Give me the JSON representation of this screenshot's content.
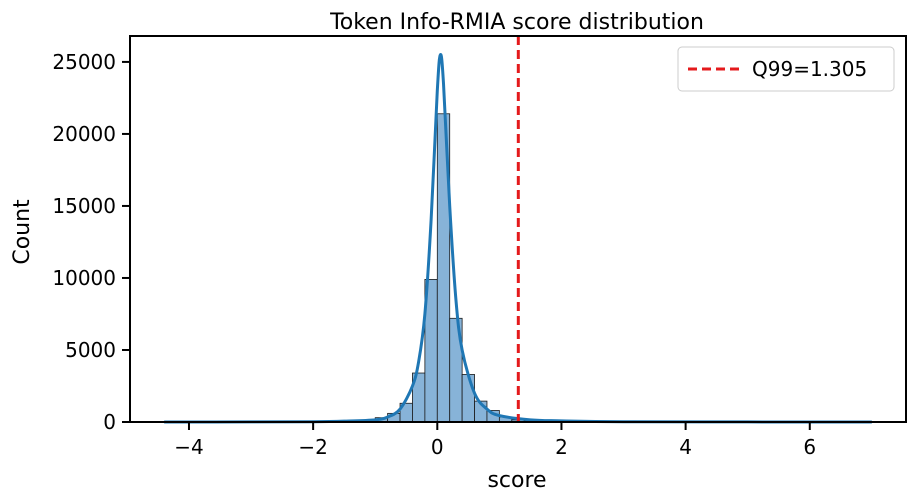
{
  "chart_data": {
    "type": "histogram",
    "title": "Token Info-RMIA score distribution",
    "xlabel": "score",
    "ylabel": "Count",
    "xlim": [
      -4.95,
      7.55
    ],
    "ylim": [
      0,
      26800
    ],
    "xticks": [
      -4,
      -2,
      0,
      2,
      4,
      6
    ],
    "xtick_labels": [
      "−4",
      "−2",
      "0",
      "2",
      "4",
      "6"
    ],
    "yticks": [
      0,
      5000,
      10000,
      15000,
      20000,
      25000
    ],
    "ytick_labels": [
      "0",
      "5000",
      "10000",
      "15000",
      "20000",
      "25000"
    ],
    "bin_width": 0.2,
    "bins": [
      {
        "x0": -4.4,
        "count": 10
      },
      {
        "x0": -2.0,
        "count": 40
      },
      {
        "x0": -1.8,
        "count": 50
      },
      {
        "x0": -1.6,
        "count": 60
      },
      {
        "x0": -1.4,
        "count": 80
      },
      {
        "x0": -1.2,
        "count": 120
      },
      {
        "x0": -1.0,
        "count": 300
      },
      {
        "x0": -0.8,
        "count": 600
      },
      {
        "x0": -0.6,
        "count": 1300
      },
      {
        "x0": -0.4,
        "count": 3400
      },
      {
        "x0": -0.2,
        "count": 9900
      },
      {
        "x0": 0.0,
        "count": 21400
      },
      {
        "x0": 0.2,
        "count": 7200
      },
      {
        "x0": 0.4,
        "count": 3300
      },
      {
        "x0": 0.6,
        "count": 1450
      },
      {
        "x0": 0.8,
        "count": 800
      },
      {
        "x0": 1.0,
        "count": 350
      },
      {
        "x0": 1.2,
        "count": 150
      },
      {
        "x0": 1.4,
        "count": 80
      },
      {
        "x0": 1.6,
        "count": 50
      },
      {
        "x0": 1.8,
        "count": 40
      },
      {
        "x0": 2.0,
        "count": 100
      },
      {
        "x0": 2.2,
        "count": 40
      },
      {
        "x0": 2.4,
        "count": 20
      }
    ],
    "kde": {
      "x": [
        -4.4,
        -3.0,
        -2.0,
        -1.5,
        -1.0,
        -0.8,
        -0.6,
        -0.4,
        -0.3,
        -0.2,
        -0.1,
        0.0,
        0.05,
        0.1,
        0.2,
        0.3,
        0.4,
        0.6,
        0.8,
        1.0,
        1.5,
        2.0,
        3.0,
        5.0,
        7.0
      ],
      "y": [
        0,
        5,
        20,
        60,
        150,
        350,
        900,
        2500,
        4200,
        7500,
        14000,
        23000,
        25500,
        23500,
        15000,
        8500,
        5000,
        2000,
        900,
        450,
        150,
        80,
        20,
        5,
        0
      ]
    },
    "quantile_line": {
      "label": "Q99=1.305",
      "x": 1.305,
      "color": "#e41a1c"
    },
    "legend_position": "upper right",
    "colors": {
      "bar_fill": "#87b3d8",
      "bar_edge": "#1a1a1a",
      "kde_line": "#1f77b4",
      "axis": "#000000"
    }
  }
}
